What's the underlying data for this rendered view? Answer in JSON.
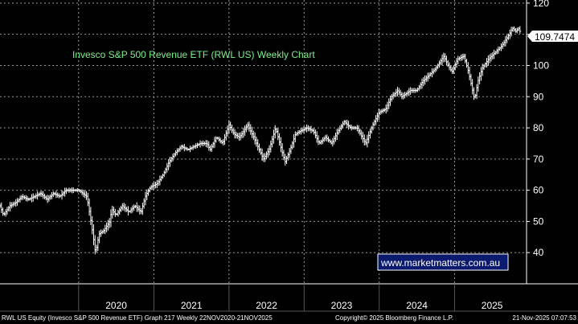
{
  "chart_data": {
    "type": "line",
    "style": "ohlc-weekly",
    "title": "Invesco S&P 500 Revenue ETF (RWL US) Weekly Chart",
    "ylim": [
      30,
      121
    ],
    "y_ticks": [
      40,
      50,
      60,
      70,
      80,
      90,
      100,
      110,
      120
    ],
    "x_ticks": [
      "2020",
      "2021",
      "2022",
      "2023",
      "2024",
      "2025"
    ],
    "last_price": "109.7474",
    "grid": true,
    "series": [
      {
        "values": [
          {
            "x": "2018-12-15",
            "y": 55
          },
          {
            "x": "2019-01-01",
            "y": 52
          },
          {
            "x": "2019-02-01",
            "y": 55
          },
          {
            "x": "2019-03-01",
            "y": 56
          },
          {
            "x": "2019-04-01",
            "y": 58
          },
          {
            "x": "2019-05-01",
            "y": 57
          },
          {
            "x": "2019-06-01",
            "y": 58
          },
          {
            "x": "2019-07-01",
            "y": 59
          },
          {
            "x": "2019-08-01",
            "y": 57
          },
          {
            "x": "2019-09-01",
            "y": 59
          },
          {
            "x": "2019-10-01",
            "y": 58
          },
          {
            "x": "2019-11-01",
            "y": 60
          },
          {
            "x": "2019-12-01",
            "y": 60
          },
          {
            "x": "2020-01-01",
            "y": 60
          },
          {
            "x": "2020-02-10",
            "y": 58
          },
          {
            "x": "2020-02-25",
            "y": 52
          },
          {
            "x": "2020-03-10",
            "y": 46
          },
          {
            "x": "2020-03-23",
            "y": 40
          },
          {
            "x": "2020-04-10",
            "y": 46
          },
          {
            "x": "2020-05-01",
            "y": 47
          },
          {
            "x": "2020-06-01",
            "y": 50
          },
          {
            "x": "2020-06-10",
            "y": 54
          },
          {
            "x": "2020-07-01",
            "y": 52
          },
          {
            "x": "2020-08-01",
            "y": 55
          },
          {
            "x": "2020-09-01",
            "y": 53
          },
          {
            "x": "2020-10-01",
            "y": 55
          },
          {
            "x": "2020-10-30",
            "y": 53
          },
          {
            "x": "2020-11-20",
            "y": 58
          },
          {
            "x": "2020-12-15",
            "y": 61
          },
          {
            "x": "2021-01-15",
            "y": 62
          },
          {
            "x": "2021-02-15",
            "y": 65
          },
          {
            "x": "2021-03-15",
            "y": 69
          },
          {
            "x": "2021-04-15",
            "y": 72
          },
          {
            "x": "2021-05-15",
            "y": 74
          },
          {
            "x": "2021-06-15",
            "y": 73
          },
          {
            "x": "2021-07-15",
            "y": 74
          },
          {
            "x": "2021-08-15",
            "y": 75
          },
          {
            "x": "2021-09-15",
            "y": 75
          },
          {
            "x": "2021-10-01",
            "y": 73
          },
          {
            "x": "2021-11-01",
            "y": 77
          },
          {
            "x": "2021-12-01",
            "y": 75
          },
          {
            "x": "2022-01-01",
            "y": 81
          },
          {
            "x": "2022-01-25",
            "y": 78
          },
          {
            "x": "2022-02-20",
            "y": 77
          },
          {
            "x": "2022-03-15",
            "y": 79
          },
          {
            "x": "2022-04-01",
            "y": 81
          },
          {
            "x": "2022-05-01",
            "y": 77
          },
          {
            "x": "2022-06-17",
            "y": 70
          },
          {
            "x": "2022-07-15",
            "y": 73
          },
          {
            "x": "2022-08-15",
            "y": 80
          },
          {
            "x": "2022-09-30",
            "y": 69
          },
          {
            "x": "2022-10-25",
            "y": 73
          },
          {
            "x": "2022-11-20",
            "y": 78
          },
          {
            "x": "2022-12-15",
            "y": 79
          },
          {
            "x": "2023-01-15",
            "y": 80
          },
          {
            "x": "2023-02-15",
            "y": 79
          },
          {
            "x": "2023-03-15",
            "y": 75
          },
          {
            "x": "2023-04-15",
            "y": 77
          },
          {
            "x": "2023-05-15",
            "y": 75
          },
          {
            "x": "2023-06-15",
            "y": 79
          },
          {
            "x": "2023-07-15",
            "y": 82
          },
          {
            "x": "2023-08-15",
            "y": 80
          },
          {
            "x": "2023-09-15",
            "y": 80
          },
          {
            "x": "2023-10-27",
            "y": 75
          },
          {
            "x": "2023-12-01",
            "y": 81
          },
          {
            "x": "2024-01-01",
            "y": 85
          },
          {
            "x": "2024-02-01",
            "y": 86
          },
          {
            "x": "2024-03-01",
            "y": 90
          },
          {
            "x": "2024-04-01",
            "y": 92
          },
          {
            "x": "2024-04-20",
            "y": 90
          },
          {
            "x": "2024-06-01",
            "y": 92
          },
          {
            "x": "2024-07-01",
            "y": 92
          },
          {
            "x": "2024-08-01",
            "y": 95
          },
          {
            "x": "2024-09-01",
            "y": 97
          },
          {
            "x": "2024-10-01",
            "y": 99
          },
          {
            "x": "2024-11-10",
            "y": 103
          },
          {
            "x": "2024-12-01",
            "y": 100
          },
          {
            "x": "2024-12-20",
            "y": 98
          },
          {
            "x": "2025-01-15",
            "y": 102
          },
          {
            "x": "2025-02-15",
            "y": 103
          },
          {
            "x": "2025-03-10",
            "y": 98
          },
          {
            "x": "2025-04-08",
            "y": 89
          },
          {
            "x": "2025-04-25",
            "y": 95
          },
          {
            "x": "2025-05-15",
            "y": 99
          },
          {
            "x": "2025-06-15",
            "y": 102
          },
          {
            "x": "2025-07-15",
            "y": 104
          },
          {
            "x": "2025-08-15",
            "y": 106
          },
          {
            "x": "2025-09-15",
            "y": 109
          },
          {
            "x": "2025-10-10",
            "y": 112
          },
          {
            "x": "2025-10-25",
            "y": 111
          },
          {
            "x": "2025-11-10",
            "y": 112
          },
          {
            "x": "2025-11-21",
            "y": 109.7474
          }
        ]
      }
    ]
  },
  "watermark": "www.marketmatters.com.au",
  "footer": {
    "left": "RWL US Equity (Invesco S&P 500 Revenue ETF) Graph 217 Weekly 22NOV2020-21NOV2025",
    "center": "Copyright© 2025 Bloomberg Finance L.P.",
    "right": "21-Nov-2025 07:07:53"
  },
  "colors": {
    "background": "#000000",
    "bars": "#ffffff",
    "grid": "#9a9a9a",
    "title": "#7cf08a",
    "watermark_border": "#ffffff",
    "watermark_bg": "#0a1a6e"
  }
}
